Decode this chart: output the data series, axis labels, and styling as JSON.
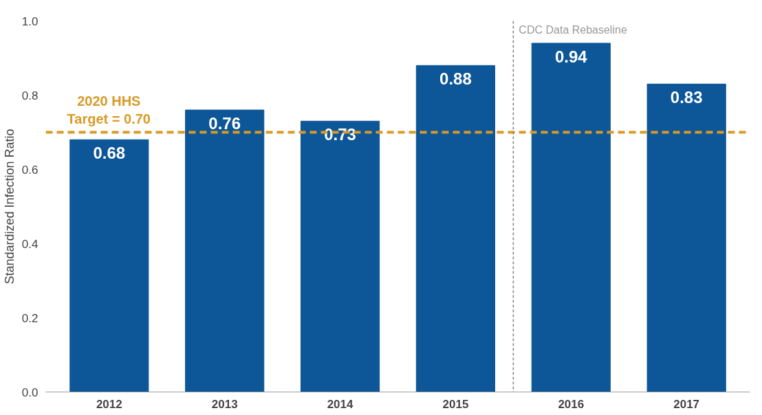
{
  "chart_data": {
    "type": "bar",
    "ylabel": "Standardized Infection Ratio",
    "categories": [
      "2012",
      "2013",
      "2014",
      "2015",
      "2016",
      "2017"
    ],
    "values": [
      0.68,
      0.76,
      0.73,
      0.88,
      0.94,
      0.83
    ],
    "color": "#0d5697",
    "data_labels": true,
    "ylim": [
      0,
      1
    ],
    "yticks": [
      {
        "value": 0,
        "label": "0.0"
      },
      {
        "value": 0.2,
        "label": "0.2"
      },
      {
        "value": 0.4,
        "label": "0.4"
      },
      {
        "value": 0.6,
        "label": "0.6"
      },
      {
        "value": 0.8,
        "label": "0.8"
      },
      {
        "value": 1,
        "label": "1.0"
      }
    ],
    "grid": false,
    "annotations": [
      "CDC Data Rebaseline"
    ],
    "ref_lines": [
      {
        "axis": "y",
        "value": 0.7,
        "label": "2020 HHS\nTarget = 0.70",
        "color": "#d99a27",
        "line_style": "dashed"
      }
    ]
  }
}
